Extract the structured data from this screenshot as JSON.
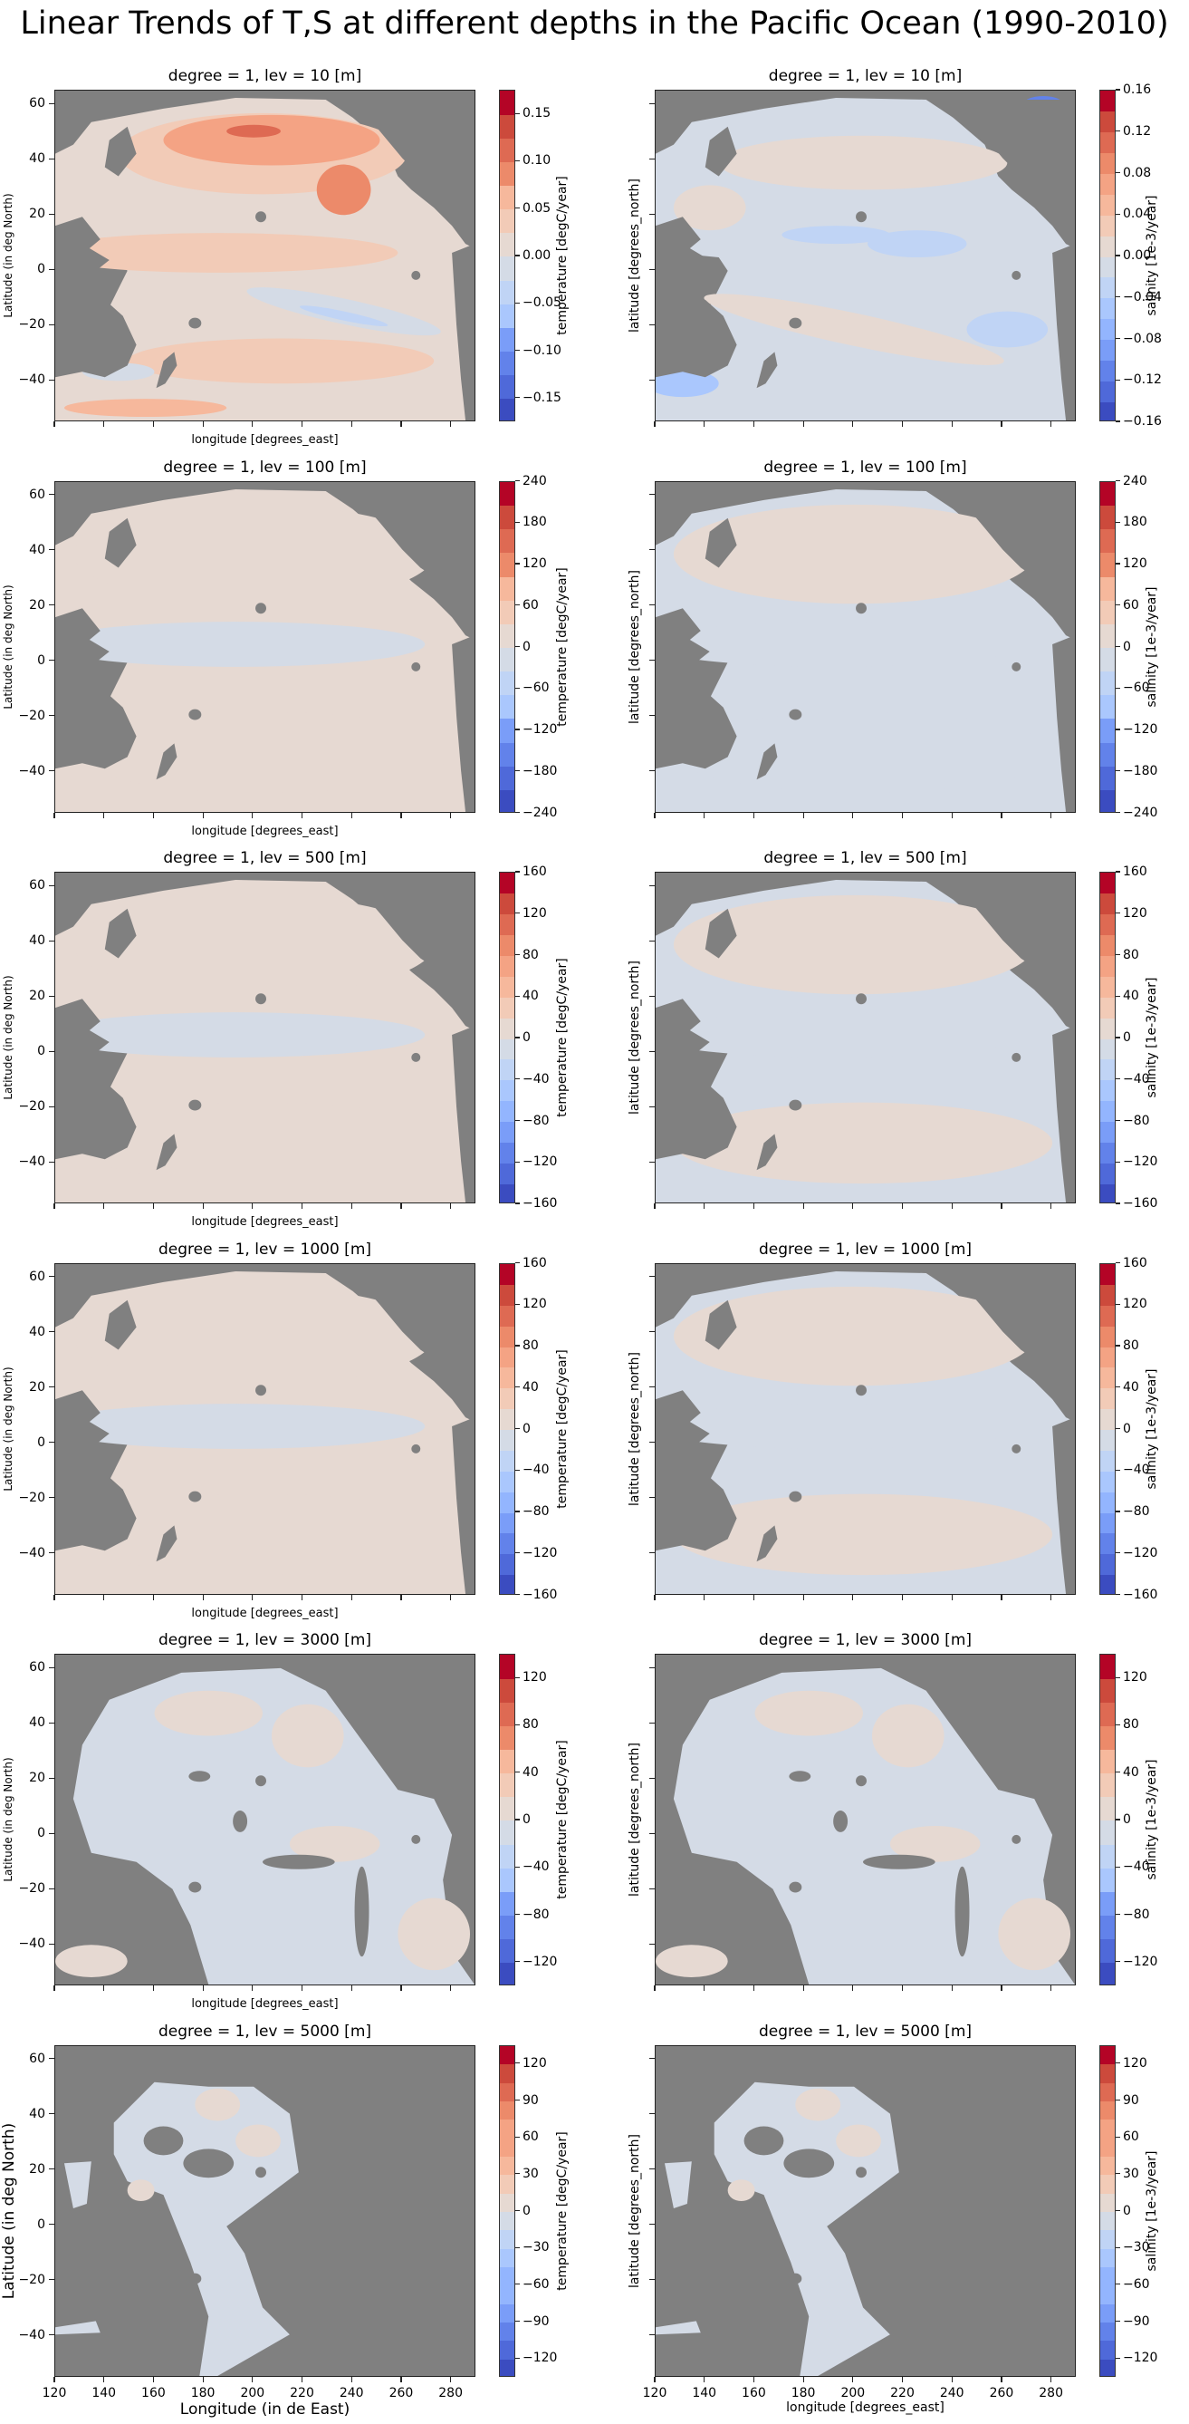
{
  "figure": {
    "title": "Linear Trends of T,S at different depths in the Pacific Ocean (1990-2010)"
  },
  "colors": {
    "land": "#808080",
    "coolwarm": [
      "#3b4cc0",
      "#4f69d9",
      "#6282ea",
      "#7a9df8",
      "#93b5fe",
      "#aac7fd",
      "#c0d4f5",
      "#d4dbe6",
      "#e6d9d2",
      "#f2cbb7",
      "#f6b89c",
      "#f4a384",
      "#ec8a6a",
      "#de6a53",
      "#cc4a3c",
      "#b40426"
    ]
  },
  "axes_common": {
    "lon_range": [
      120,
      290
    ],
    "lat_range": [
      -55,
      65
    ],
    "xticks": [
      "120",
      "140",
      "160",
      "180",
      "200",
      "220",
      "240",
      "260",
      "280"
    ],
    "yticks": [
      "60",
      "40",
      "20",
      "0",
      "−20",
      "−40"
    ],
    "ytick_values": [
      60,
      40,
      20,
      0,
      -20,
      -40
    ],
    "xtick_values": [
      120,
      140,
      160,
      180,
      200,
      220,
      240,
      260,
      280
    ]
  },
  "labels": {
    "left_ylabel": "Latitude (in deg North)",
    "right_ylabel": "latitude [degrees_north]",
    "xlabel": "longitude [degrees_east]",
    "bottom_left_xlabel": "Longitude (in de East)",
    "temp_cbar_label": "temperature [degC/year]",
    "sal_cbar_label": "salinity [1e-3/year]"
  },
  "chart_data": [
    {
      "type": "heatmap",
      "variable": "temperature",
      "title": "degree = 1, lev = 10 [m]",
      "xlabel": "longitude [degrees_east]",
      "ylabel": "Latitude (in deg North)",
      "colorbar_label": "temperature [degC/year]",
      "levels": [
        -0.175,
        0.175
      ],
      "n_bands": 14,
      "cbar_ticks": [
        "0.15",
        "0.10",
        "0.05",
        "0.00",
        "−0.05",
        "−0.10",
        "−0.15"
      ],
      "cbar_tick_values": [
        0.15,
        0.1,
        0.05,
        0,
        -0.05,
        -0.1,
        -0.15
      ],
      "pattern": "warming across most of North Pacific (0.05-0.15), strongest near Kuroshio and NE Pacific; weak cooling band in east equatorial and south Pacific"
    },
    {
      "type": "heatmap",
      "variable": "salinity",
      "title": "degree = 1, lev = 10 [m]",
      "xlabel": "",
      "ylabel": "latitude [degrees_north]",
      "colorbar_label": "salinity [1e-3/year]",
      "levels": [
        -0.16,
        0.16
      ],
      "n_bands": 16,
      "cbar_ticks": [
        "0.16",
        "0.12",
        "0.08",
        "0.04",
        "0.00",
        "−0.04",
        "−0.08",
        "−0.12",
        "−0.16"
      ],
      "cbar_tick_values": [
        0.16,
        0.12,
        0.08,
        0.04,
        0,
        -0.04,
        -0.08,
        -0.12,
        -0.16
      ],
      "pattern": "mostly near zero; slight positive subtropical bands, negative patches in tropics, strong freshening in Gulf of Alaska corner and south of Australia"
    },
    {
      "type": "heatmap",
      "variable": "temperature",
      "title": "degree = 1, lev = 100 [m]",
      "xlabel": "longitude [degrees_east]",
      "ylabel": "Latitude (in deg North)",
      "colorbar_label": "temperature [degC/year]",
      "levels": [
        -240,
        240
      ],
      "n_bands": 14,
      "cbar_ticks": [
        "240",
        "180",
        "120",
        "60",
        "0",
        "−60",
        "−120",
        "−180",
        "−240"
      ],
      "cbar_tick_values": [
        240,
        180,
        120,
        60,
        0,
        -60,
        -120,
        -180,
        -240
      ],
      "pattern": "near zero everywhere; slight positive most of basin, slight negative tropical bands"
    },
    {
      "type": "heatmap",
      "variable": "salinity",
      "title": "degree = 1, lev = 100 [m]",
      "xlabel": "",
      "ylabel": "latitude [degrees_north]",
      "colorbar_label": "salinity [1e-3/year]",
      "levels": [
        -240,
        240
      ],
      "n_bands": 14,
      "cbar_ticks": [
        "240",
        "180",
        "120",
        "60",
        "0",
        "−60",
        "−120",
        "−180",
        "−240"
      ],
      "cbar_tick_values": [
        240,
        180,
        120,
        60,
        0,
        -60,
        -120,
        -180,
        -240
      ],
      "pattern": "near zero; slight positive north, slight negative tropics/south"
    },
    {
      "type": "heatmap",
      "variable": "temperature",
      "title": "degree = 1, lev = 500 [m]",
      "xlabel": "longitude [degrees_east]",
      "ylabel": "Latitude (in deg North)",
      "colorbar_label": "temperature [degC/year]",
      "levels": [
        -160,
        160
      ],
      "n_bands": 16,
      "cbar_ticks": [
        "160",
        "120",
        "80",
        "40",
        "0",
        "−40",
        "−80",
        "−120",
        "−160"
      ],
      "cbar_tick_values": [
        160,
        120,
        80,
        40,
        0,
        -40,
        -80,
        -120,
        -160
      ],
      "pattern": "near zero; slight positive dominant, slight negative equatorial band"
    },
    {
      "type": "heatmap",
      "variable": "salinity",
      "title": "degree = 1, lev = 500 [m]",
      "xlabel": "",
      "ylabel": "latitude [degrees_north]",
      "colorbar_label": "salinity [1e-3/year]",
      "levels": [
        -160,
        160
      ],
      "n_bands": 16,
      "cbar_ticks": [
        "160",
        "120",
        "80",
        "40",
        "0",
        "−40",
        "−80",
        "−120",
        "−160"
      ],
      "cbar_tick_values": [
        160,
        120,
        80,
        40,
        0,
        -40,
        -80,
        -120,
        -160
      ],
      "pattern": "near zero; slight positive north and south, slight negative equatorial"
    },
    {
      "type": "heatmap",
      "variable": "temperature",
      "title": "degree = 1, lev = 1000 [m]",
      "xlabel": "longitude [degrees_east]",
      "ylabel": "Latitude (in deg North)",
      "colorbar_label": "temperature [degC/year]",
      "levels": [
        -160,
        160
      ],
      "n_bands": 16,
      "cbar_ticks": [
        "160",
        "120",
        "80",
        "40",
        "0",
        "−40",
        "−80",
        "−120",
        "−160"
      ],
      "cbar_tick_values": [
        160,
        120,
        80,
        40,
        0,
        -40,
        -80,
        -120,
        -160
      ],
      "pattern": "near zero; slight positive most areas, slight negative tropical and southern patches"
    },
    {
      "type": "heatmap",
      "variable": "salinity",
      "title": "degree = 1, lev = 1000 [m]",
      "xlabel": "",
      "ylabel": "latitude [degrees_north]",
      "colorbar_label": "salinity [1e-3/year]",
      "levels": [
        -160,
        160
      ],
      "n_bands": 16,
      "cbar_ticks": [
        "160",
        "120",
        "80",
        "40",
        "0",
        "−40",
        "−80",
        "−120",
        "−160"
      ],
      "cbar_tick_values": [
        160,
        120,
        80,
        40,
        0,
        -40,
        -80,
        -120,
        -160
      ],
      "pattern": "near zero; slight positive north, slight negative tropics"
    },
    {
      "type": "heatmap",
      "variable": "temperature",
      "title": "degree = 1, lev = 3000 [m]",
      "xlabel": "longitude [degrees_east]",
      "ylabel": "Latitude (in deg North)",
      "colorbar_label": "temperature [degC/year]",
      "levels": [
        -140,
        140
      ],
      "n_bands": 14,
      "cbar_ticks": [
        "120",
        "80",
        "40",
        "0",
        "−40",
        "−80",
        "−120"
      ],
      "cbar_tick_values": [
        120,
        80,
        40,
        0,
        -40,
        -80,
        -120
      ],
      "pattern": "near zero; patchy slight positive/negative; bathymetry masks large areas"
    },
    {
      "type": "heatmap",
      "variable": "salinity",
      "title": "degree = 1, lev = 3000 [m]",
      "xlabel": "",
      "ylabel": "latitude [degrees_north]",
      "colorbar_label": "salinity [1e-3/year]",
      "levels": [
        -140,
        140
      ],
      "n_bands": 14,
      "cbar_ticks": [
        "120",
        "80",
        "40",
        "0",
        "−40",
        "−80",
        "−120"
      ],
      "cbar_tick_values": [
        120,
        80,
        40,
        0,
        -40,
        -80,
        -120
      ],
      "pattern": "near zero; patchy slight positive/negative"
    },
    {
      "type": "heatmap",
      "variable": "temperature",
      "title": "degree = 1, lev = 5000 [m]",
      "xlabel": "Longitude (in de East)",
      "ylabel": "Latitude (in deg North)",
      "colorbar_label": "temperature [degC/year]",
      "levels": [
        -135,
        135
      ],
      "n_bands": 18,
      "cbar_ticks": [
        "120",
        "90",
        "60",
        "30",
        "0",
        "−30",
        "−60",
        "−90",
        "−120"
      ],
      "cbar_tick_values": [
        120,
        90,
        60,
        30,
        0,
        -30,
        -60,
        -90,
        -120
      ],
      "pattern": "only deep basins in western/central Pacific valid; mostly slight negative with a few slight positive patches"
    },
    {
      "type": "heatmap",
      "variable": "salinity",
      "title": "degree = 1, lev = 5000 [m]",
      "xlabel": "longitude [degrees_east]",
      "ylabel": "latitude [degrees_north]",
      "colorbar_label": "salinity [1e-3/year]",
      "levels": [
        -135,
        135
      ],
      "n_bands": 18,
      "cbar_ticks": [
        "120",
        "90",
        "60",
        "30",
        "0",
        "−30",
        "−60",
        "−90",
        "−120"
      ],
      "cbar_tick_values": [
        120,
        90,
        60,
        30,
        0,
        -30,
        -60,
        -90,
        -120
      ],
      "pattern": "only deep basins valid; mix of slight positive and slight negative"
    }
  ]
}
